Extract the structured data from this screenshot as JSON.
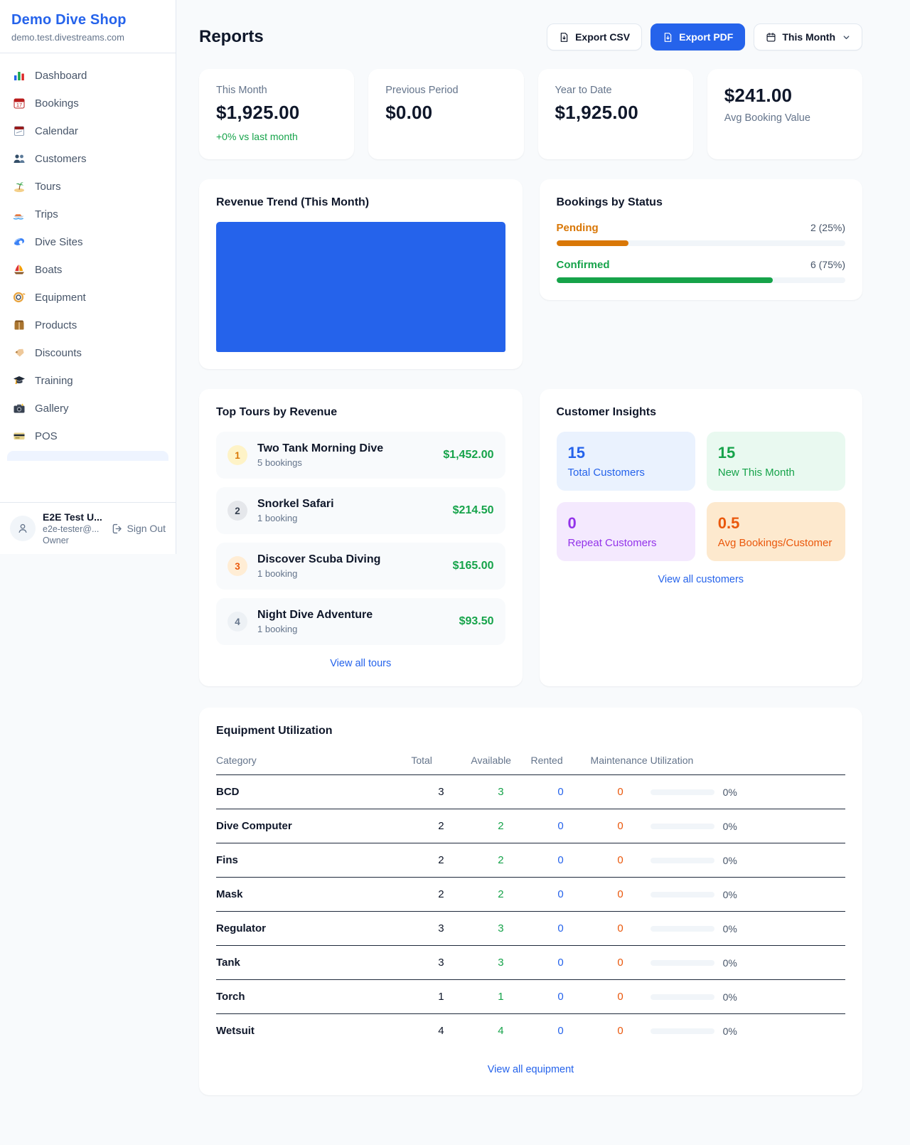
{
  "sidebar": {
    "shop_name": "Demo Dive Shop",
    "shop_domain": "demo.test.divestreams.com",
    "items": [
      {
        "label": "Dashboard",
        "icon": "bar-chart-icon"
      },
      {
        "label": "Bookings",
        "icon": "calendar-date-icon"
      },
      {
        "label": "Calendar",
        "icon": "tear-calendar-icon"
      },
      {
        "label": "Customers",
        "icon": "people-icon"
      },
      {
        "label": "Tours",
        "icon": "palm-island-icon"
      },
      {
        "label": "Trips",
        "icon": "speedboat-icon"
      },
      {
        "label": "Dive Sites",
        "icon": "wave-icon"
      },
      {
        "label": "Boats",
        "icon": "sailboat-icon"
      },
      {
        "label": "Equipment",
        "icon": "dive-mask-icon"
      },
      {
        "label": "Products",
        "icon": "package-icon"
      },
      {
        "label": "Discounts",
        "icon": "price-tag-icon"
      },
      {
        "label": "Training",
        "icon": "graduation-cap-icon"
      },
      {
        "label": "Gallery",
        "icon": "camera-icon"
      },
      {
        "label": "POS",
        "icon": "credit-card-icon"
      }
    ],
    "user": {
      "name": "E2E Test U...",
      "email": "e2e-tester@...",
      "role": "Owner",
      "sign_out_label": "Sign Out"
    }
  },
  "header": {
    "title": "Reports",
    "export_csv_label": "Export CSV",
    "export_pdf_label": "Export PDF",
    "period_label": "This Month"
  },
  "stats": [
    {
      "label": "This Month",
      "value": "$1,925.00",
      "delta": "+0% vs last month"
    },
    {
      "label": "Previous Period",
      "value": "$0.00"
    },
    {
      "label": "Year to Date",
      "value": "$1,925.00"
    },
    {
      "label": "Avg Booking Value",
      "value": "$241.00"
    }
  ],
  "revenue_trend": {
    "title": "Revenue Trend (This Month)",
    "bar_color": "#2563EB"
  },
  "bookings_by_status": {
    "title": "Bookings by Status",
    "rows": [
      {
        "label": "Pending",
        "count_text": "2 (25%)",
        "pct": 25,
        "color": "#D97706"
      },
      {
        "label": "Confirmed",
        "count_text": "6 (75%)",
        "pct": 75,
        "color": "#16A34A"
      }
    ]
  },
  "top_tours": {
    "title": "Top Tours by Revenue",
    "rows": [
      {
        "rank": "1",
        "name": "Two Tank Morning Dive",
        "bookings": "5 bookings",
        "revenue": "$1,452.00"
      },
      {
        "rank": "2",
        "name": "Snorkel Safari",
        "bookings": "1 booking",
        "revenue": "$214.50"
      },
      {
        "rank": "3",
        "name": "Discover Scuba Diving",
        "bookings": "1 booking",
        "revenue": "$165.00"
      },
      {
        "rank": "4",
        "name": "Night Dive Adventure",
        "bookings": "1 booking",
        "revenue": "$93.50"
      }
    ],
    "view_all_label": "View all tours"
  },
  "customer_insights": {
    "title": "Customer Insights",
    "tiles": [
      {
        "value": "15",
        "label": "Total Customers",
        "accent": "#2563EB"
      },
      {
        "value": "15",
        "label": "New This Month",
        "accent": "#16A34A"
      },
      {
        "value": "0",
        "label": "Repeat Customers",
        "accent": "#9333EA"
      },
      {
        "value": "0.5",
        "label": "Avg Bookings/Customer",
        "accent": "#EA580C"
      }
    ],
    "view_all_label": "View all customers"
  },
  "equipment": {
    "title": "Equipment Utilization",
    "columns": [
      "Category",
      "Total",
      "Available",
      "Rented",
      "Maintenance",
      "Utilization"
    ],
    "rows": [
      {
        "category": "BCD",
        "total": "3",
        "available": "3",
        "rented": "0",
        "maintenance": "0",
        "utilization": "0%",
        "util_pct": 0
      },
      {
        "category": "Dive Computer",
        "total": "2",
        "available": "2",
        "rented": "0",
        "maintenance": "0",
        "utilization": "0%",
        "util_pct": 0
      },
      {
        "category": "Fins",
        "total": "2",
        "available": "2",
        "rented": "0",
        "maintenance": "0",
        "utilization": "0%",
        "util_pct": 0
      },
      {
        "category": "Mask",
        "total": "2",
        "available": "2",
        "rented": "0",
        "maintenance": "0",
        "utilization": "0%",
        "util_pct": 0
      },
      {
        "category": "Regulator",
        "total": "3",
        "available": "3",
        "rented": "0",
        "maintenance": "0",
        "utilization": "0%",
        "util_pct": 0
      },
      {
        "category": "Tank",
        "total": "3",
        "available": "3",
        "rented": "0",
        "maintenance": "0",
        "utilization": "0%",
        "util_pct": 0
      },
      {
        "category": "Torch",
        "total": "1",
        "available": "1",
        "rented": "0",
        "maintenance": "0",
        "utilization": "0%",
        "util_pct": 0
      },
      {
        "category": "Wetsuit",
        "total": "4",
        "available": "4",
        "rented": "0",
        "maintenance": "0",
        "utilization": "0%",
        "util_pct": 0
      }
    ],
    "view_all_label": "View all equipment"
  }
}
